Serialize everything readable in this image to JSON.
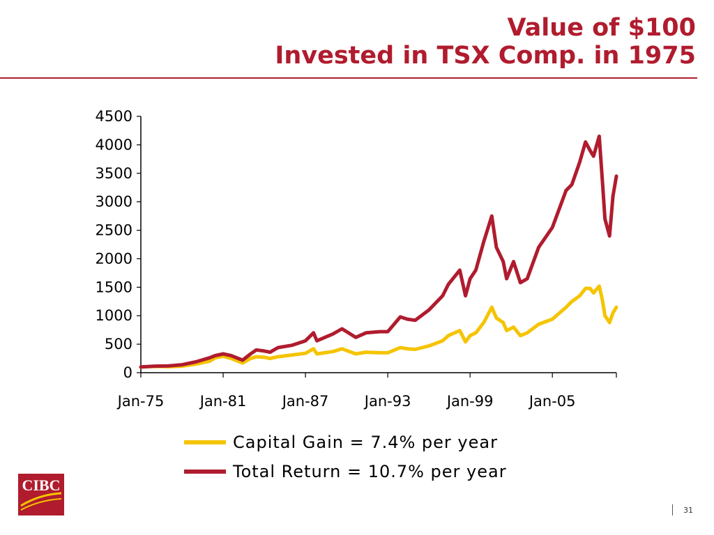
{
  "title_line1": "Value of $100",
  "title_line2": "Invested in TSX Comp. in 1975",
  "page_number": "31",
  "logo_text": "CIBC",
  "colors": {
    "brand_red": "#b01c2e",
    "capital_gain": "#f5c400",
    "total_return": "#b01c2e"
  },
  "chart_data": {
    "type": "line",
    "x_tick_labels": [
      "Jan-75",
      "Jan-81",
      "Jan-87",
      "Jan-93",
      "Jan-99",
      "Jan-05"
    ],
    "x_range": [
      "1975-01",
      "2009-09"
    ],
    "ylim": [
      0,
      4500
    ],
    "y_ticks": [
      0,
      500,
      1000,
      1500,
      2000,
      2500,
      3000,
      3500,
      4000,
      4500
    ],
    "grid": false,
    "legend_position": "bottom",
    "series": [
      {
        "name": "Capital Gain = 7.4% per year",
        "color": "#f5c400",
        "points": [
          [
            "1975-01",
            100
          ],
          [
            "1976-01",
            110
          ],
          [
            "1977-01",
            105
          ],
          [
            "1978-01",
            115
          ],
          [
            "1979-01",
            150
          ],
          [
            "1980-01",
            200
          ],
          [
            "1980-06",
            260
          ],
          [
            "1981-01",
            290
          ],
          [
            "1981-08",
            250
          ],
          [
            "1982-06",
            170
          ],
          [
            "1983-01",
            250
          ],
          [
            "1983-06",
            280
          ],
          [
            "1984-01",
            270
          ],
          [
            "1984-06",
            250
          ],
          [
            "1985-01",
            280
          ],
          [
            "1986-01",
            310
          ],
          [
            "1987-01",
            340
          ],
          [
            "1987-08",
            420
          ],
          [
            "1987-11",
            330
          ],
          [
            "1988-06",
            350
          ],
          [
            "1989-01",
            370
          ],
          [
            "1989-09",
            420
          ],
          [
            "1990-09",
            330
          ],
          [
            "1991-06",
            360
          ],
          [
            "1992-06",
            350
          ],
          [
            "1993-01",
            350
          ],
          [
            "1993-12",
            440
          ],
          [
            "1994-06",
            420
          ],
          [
            "1995-01",
            410
          ],
          [
            "1996-01",
            470
          ],
          [
            "1997-01",
            560
          ],
          [
            "1997-06",
            650
          ],
          [
            "1998-04",
            740
          ],
          [
            "1998-09",
            540
          ],
          [
            "1999-01",
            650
          ],
          [
            "1999-06",
            700
          ],
          [
            "2000-01",
            880
          ],
          [
            "2000-08",
            1150
          ],
          [
            "2000-12",
            960
          ],
          [
            "2001-06",
            880
          ],
          [
            "2001-09",
            740
          ],
          [
            "2002-03",
            800
          ],
          [
            "2002-09",
            650
          ],
          [
            "2003-03",
            700
          ],
          [
            "2004-01",
            850
          ],
          [
            "2005-01",
            940
          ],
          [
            "2006-01",
            1150
          ],
          [
            "2006-06",
            1250
          ],
          [
            "2007-01",
            1350
          ],
          [
            "2007-06",
            1480
          ],
          [
            "2007-10",
            1480
          ],
          [
            "2008-01",
            1400
          ],
          [
            "2008-06",
            1520
          ],
          [
            "2008-09",
            1250
          ],
          [
            "2008-11",
            1000
          ],
          [
            "2009-03",
            880
          ],
          [
            "2009-06",
            1050
          ],
          [
            "2009-09",
            1150
          ]
        ]
      },
      {
        "name": "Total Return = 10.7% per year",
        "color": "#b01c2e",
        "points": [
          [
            "1975-01",
            100
          ],
          [
            "1976-01",
            115
          ],
          [
            "1977-01",
            120
          ],
          [
            "1978-01",
            140
          ],
          [
            "1979-01",
            190
          ],
          [
            "1980-01",
            260
          ],
          [
            "1980-06",
            300
          ],
          [
            "1981-01",
            330
          ],
          [
            "1981-08",
            300
          ],
          [
            "1982-06",
            220
          ],
          [
            "1983-01",
            330
          ],
          [
            "1983-06",
            400
          ],
          [
            "1984-01",
            380
          ],
          [
            "1984-06",
            360
          ],
          [
            "1985-01",
            440
          ],
          [
            "1986-01",
            480
          ],
          [
            "1987-01",
            560
          ],
          [
            "1987-08",
            700
          ],
          [
            "1987-11",
            560
          ],
          [
            "1988-06",
            620
          ],
          [
            "1989-01",
            680
          ],
          [
            "1989-09",
            770
          ],
          [
            "1990-09",
            620
          ],
          [
            "1991-06",
            700
          ],
          [
            "1992-06",
            720
          ],
          [
            "1993-01",
            720
          ],
          [
            "1993-12",
            980
          ],
          [
            "1994-06",
            940
          ],
          [
            "1995-01",
            920
          ],
          [
            "1996-01",
            1100
          ],
          [
            "1997-01",
            1350
          ],
          [
            "1997-06",
            1550
          ],
          [
            "1998-04",
            1800
          ],
          [
            "1998-09",
            1350
          ],
          [
            "1999-01",
            1650
          ],
          [
            "1999-06",
            1800
          ],
          [
            "2000-01",
            2300
          ],
          [
            "2000-08",
            2750
          ],
          [
            "2000-12",
            2200
          ],
          [
            "2001-06",
            1950
          ],
          [
            "2001-09",
            1650
          ],
          [
            "2002-03",
            1950
          ],
          [
            "2002-09",
            1580
          ],
          [
            "2003-03",
            1650
          ],
          [
            "2004-01",
            2200
          ],
          [
            "2005-01",
            2550
          ],
          [
            "2006-01",
            3200
          ],
          [
            "2006-06",
            3300
          ],
          [
            "2007-01",
            3700
          ],
          [
            "2007-06",
            4050
          ],
          [
            "2007-10",
            3900
          ],
          [
            "2008-01",
            3800
          ],
          [
            "2008-06",
            4150
          ],
          [
            "2008-09",
            3300
          ],
          [
            "2008-11",
            2700
          ],
          [
            "2009-03",
            2400
          ],
          [
            "2009-06",
            3100
          ],
          [
            "2009-09",
            3450
          ]
        ]
      }
    ]
  }
}
